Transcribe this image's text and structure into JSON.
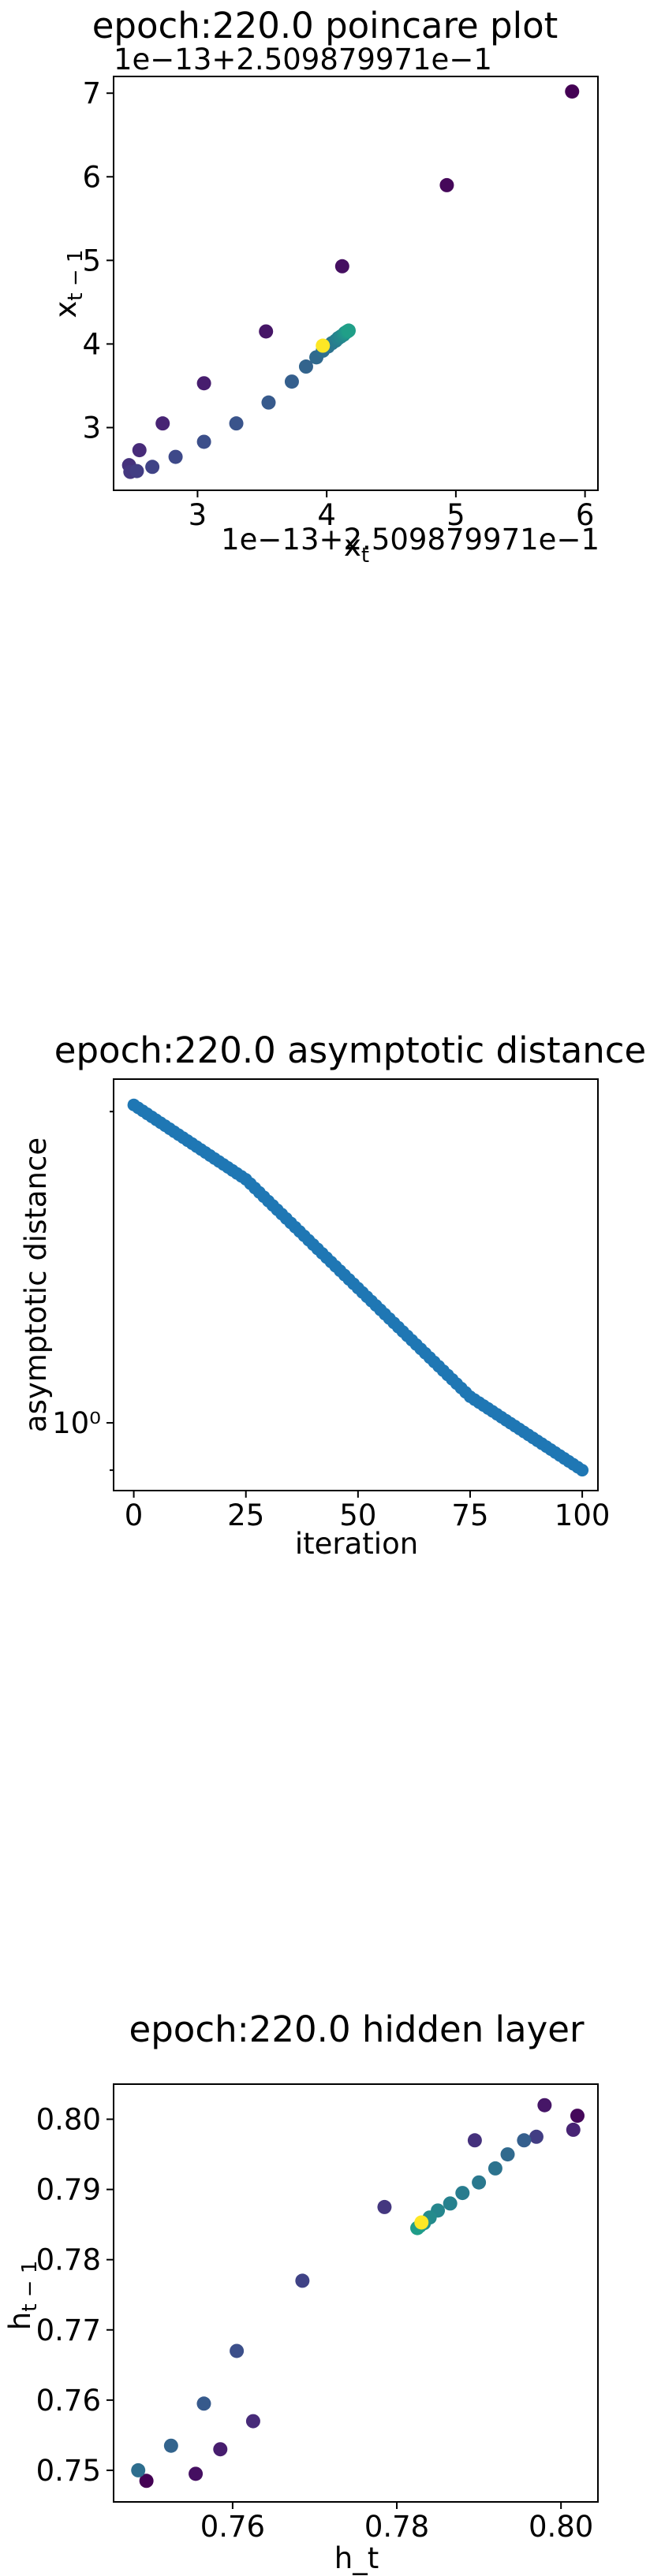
{
  "charts": [
    {
      "id": "poincare",
      "title": "epoch:220.0 poincare plot",
      "xlabel": "x_t",
      "ylabel": "x_{t-1}",
      "x_offset_text": "1e−13+2.509879971e−1",
      "y_offset_text": "1e−13+2.509879971e−1",
      "xticks": [
        "3",
        "4",
        "5",
        "6"
      ],
      "yticks": [
        "3",
        "4",
        "5",
        "6",
        "7"
      ]
    },
    {
      "id": "asymptotic",
      "title": "epoch:220.0 asymptotic distance",
      "xlabel": "iteration",
      "ylabel": "asymptotic distance",
      "xticks": [
        "0",
        "25",
        "50",
        "75",
        "100"
      ],
      "yticks": [
        "10⁰"
      ]
    },
    {
      "id": "hidden",
      "title": "epoch:220.0 hidden layer",
      "xlabel": "h_t",
      "ylabel": "h_{t-1}",
      "xticks": [
        "0.76",
        "0.78",
        "0.80"
      ],
      "yticks": [
        "0.75",
        "0.76",
        "0.77",
        "0.78",
        "0.79",
        "0.80"
      ]
    }
  ],
  "chart_data": [
    {
      "type": "scatter",
      "title": "epoch:220.0 poincare plot",
      "xlabel": "x_t",
      "ylabel": "x_{t-1}",
      "offset": "1e-13+2.509879971e-1",
      "xlim": [
        2.35,
        6.1
      ],
      "ylim": [
        2.25,
        7.2
      ],
      "colormap": "viridis",
      "color_by": "iteration (dark = early, yellow = late)",
      "x": [
        5.9,
        4.93,
        4.12,
        3.53,
        3.05,
        2.73,
        2.55,
        2.47,
        2.48,
        2.53,
        2.65,
        2.83,
        3.05,
        3.3,
        3.55,
        3.73,
        3.84,
        3.92,
        3.97,
        4.01,
        4.04,
        4.07,
        4.09,
        4.11,
        4.13,
        4.14,
        4.15,
        4.16,
        4.17,
        3.97
      ],
      "y": [
        7.02,
        5.9,
        4.93,
        4.15,
        3.53,
        3.05,
        2.73,
        2.55,
        2.47,
        2.48,
        2.53,
        2.65,
        2.83,
        3.05,
        3.3,
        3.55,
        3.73,
        3.84,
        3.92,
        3.97,
        4.01,
        4.04,
        4.07,
        4.09,
        4.11,
        4.13,
        4.14,
        4.15,
        4.16,
        3.98
      ],
      "t": [
        0,
        0.02,
        0.04,
        0.06,
        0.08,
        0.1,
        0.12,
        0.14,
        0.16,
        0.18,
        0.2,
        0.22,
        0.24,
        0.26,
        0.28,
        0.3,
        0.32,
        0.34,
        0.36,
        0.38,
        0.4,
        0.42,
        0.44,
        0.46,
        0.48,
        0.5,
        0.52,
        0.54,
        0.56,
        1.0
      ],
      "xticks": [
        3,
        4,
        5,
        6
      ],
      "yticks": [
        3,
        4,
        5,
        6,
        7
      ]
    },
    {
      "type": "scatter",
      "title": "epoch:220.0 asymptotic distance",
      "xlabel": "iteration",
      "ylabel": "asymptotic distance",
      "yscale": "log",
      "xlim": [
        -4.5,
        103.5
      ],
      "ylim": [
        0.86,
        2.15
      ],
      "xticks": [
        0,
        25,
        50,
        75,
        100
      ],
      "yticks": [
        1
      ],
      "color": "#1f77b4",
      "n_points": 101,
      "x_range": [
        0,
        100
      ],
      "y_anchor_x": [
        0,
        25,
        50,
        75,
        100
      ],
      "y_anchor": [
        2.03,
        1.72,
        1.35,
        1.06,
        0.9
      ]
    },
    {
      "type": "scatter",
      "title": "epoch:220.0 hidden layer",
      "xlabel": "h_t",
      "ylabel": "h_{t-1}",
      "xlim": [
        0.7455,
        0.8045
      ],
      "ylim": [
        0.7455,
        0.805
      ],
      "colormap": "viridis",
      "color_by": "iteration (dark = early, yellow = late)",
      "xticks": [
        0.76,
        0.78,
        0.8
      ],
      "yticks": [
        0.75,
        0.76,
        0.77,
        0.78,
        0.79,
        0.8
      ],
      "x": [
        0.7485,
        0.7495,
        0.7525,
        0.7555,
        0.7565,
        0.7585,
        0.7605,
        0.7625,
        0.7685,
        0.7785,
        0.7895,
        0.798,
        0.802,
        0.8015,
        0.797,
        0.7955,
        0.7935,
        0.792,
        0.79,
        0.788,
        0.7865,
        0.785,
        0.784,
        0.7833,
        0.7828,
        0.7825,
        0.783
      ],
      "y": [
        0.75,
        0.7485,
        0.7535,
        0.7495,
        0.7595,
        0.753,
        0.767,
        0.757,
        0.777,
        0.7875,
        0.797,
        0.802,
        0.8005,
        0.7985,
        0.7975,
        0.797,
        0.795,
        0.793,
        0.791,
        0.7895,
        0.788,
        0.787,
        0.786,
        0.7852,
        0.7848,
        0.7845,
        0.7853
      ],
      "t": [
        0.36,
        0.0,
        0.32,
        0.04,
        0.28,
        0.08,
        0.24,
        0.12,
        0.2,
        0.16,
        0.14,
        0.06,
        0.02,
        0.1,
        0.18,
        0.3,
        0.34,
        0.38,
        0.4,
        0.42,
        0.44,
        0.46,
        0.48,
        0.5,
        0.52,
        0.55,
        1.0
      ]
    }
  ]
}
